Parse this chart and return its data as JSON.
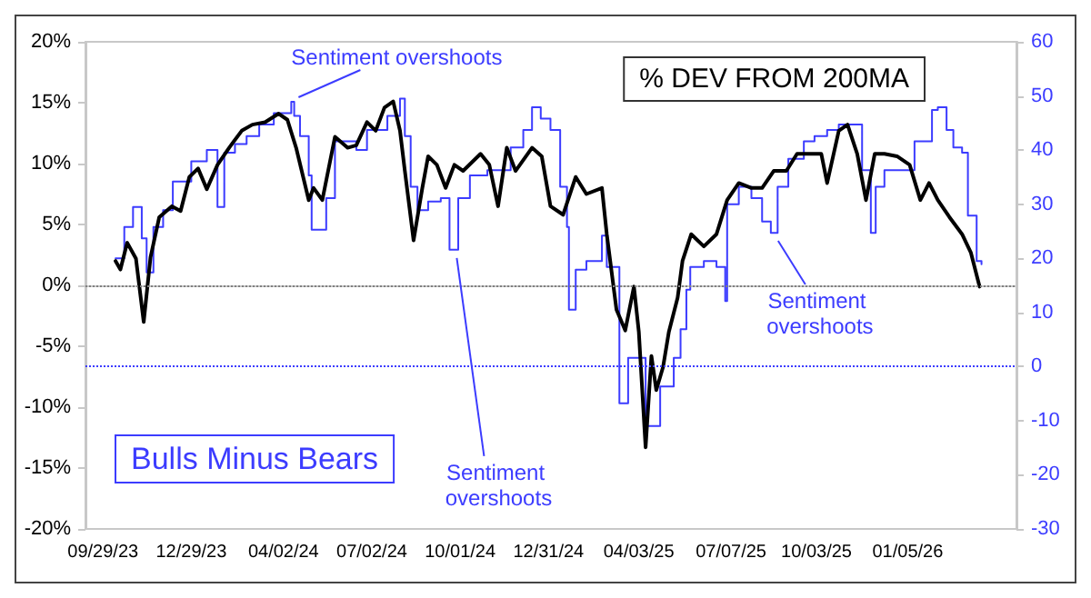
{
  "chart_data": {
    "type": "line",
    "xlim": [
      "2023-09-11",
      "2026-04-27"
    ],
    "xticks": [
      {
        "value": "2023-09-29",
        "label": "09/29/23"
      },
      {
        "value": "2023-12-29",
        "label": "12/29/23"
      },
      {
        "value": "2024-04-02",
        "label": "04/02/24"
      },
      {
        "value": "2024-07-02",
        "label": "07/02/24"
      },
      {
        "value": "2024-10-01",
        "label": "10/01/24"
      },
      {
        "value": "2024-12-31",
        "label": "12/31/24"
      },
      {
        "value": "2025-04-03",
        "label": "04/03/25"
      },
      {
        "value": "2025-07-07",
        "label": "07/07/25"
      },
      {
        "value": "2025-10-03",
        "label": "10/03/25"
      },
      {
        "value": "2026-01-05",
        "label": "01/05/26"
      }
    ],
    "ylim": [
      -20,
      20
    ],
    "yticks": [
      {
        "value": -20,
        "label": "-20%"
      },
      {
        "value": -15,
        "label": "-15%"
      },
      {
        "value": -10,
        "label": "-10%"
      },
      {
        "value": -5,
        "label": "-5%"
      },
      {
        "value": 0,
        "label": "0%"
      },
      {
        "value": 5,
        "label": "5%"
      },
      {
        "value": 10,
        "label": "10%"
      },
      {
        "value": 15,
        "label": "15%"
      },
      {
        "value": 20,
        "label": "20%"
      }
    ],
    "y2lim": [
      -30,
      60
    ],
    "y2ticks": [
      -30,
      -20,
      -10,
      0,
      10,
      20,
      30,
      40,
      50,
      60
    ],
    "series": [
      {
        "name": "% DEV FROM 200MA",
        "color": "#000000",
        "x": [
          "2023-10-12",
          "2023-10-17",
          "2023-10-24",
          "2023-11-02",
          "2023-11-10",
          "2023-11-17",
          "2023-11-26",
          "2023-12-09",
          "2023-12-18",
          "2023-12-27",
          "2024-01-05",
          "2024-01-14",
          "2024-01-25",
          "2024-02-06",
          "2024-02-19",
          "2024-03-01",
          "2024-03-14",
          "2024-03-28",
          "2024-04-06",
          "2024-04-15",
          "2024-04-28",
          "2024-05-03",
          "2024-05-12",
          "2024-05-25",
          "2024-06-07",
          "2024-06-16",
          "2024-06-27",
          "2024-07-06",
          "2024-07-15",
          "2024-07-24",
          "2024-07-31",
          "2024-08-05",
          "2024-08-14",
          "2024-08-23",
          "2024-08-29",
          "2024-09-07",
          "2024-09-16",
          "2024-09-25",
          "2024-10-04",
          "2024-10-22",
          "2024-10-31",
          "2024-11-09",
          "2024-11-18",
          "2024-11-27",
          "2024-12-14",
          "2024-12-24",
          "2025-01-02",
          "2025-01-15",
          "2025-01-28",
          "2025-02-08",
          "2025-02-24",
          "2025-03-01",
          "2025-03-11",
          "2025-03-20",
          "2025-03-29",
          "2025-04-03",
          "2025-04-10",
          "2025-04-16",
          "2025-04-21",
          "2025-04-28",
          "2025-05-04",
          "2025-05-13",
          "2025-05-18",
          "2025-05-27",
          "2025-06-09",
          "2025-06-22",
          "2025-07-03",
          "2025-07-15",
          "2025-07-28",
          "2025-08-08",
          "2025-08-20",
          "2025-09-02",
          "2025-09-13",
          "2025-09-26",
          "2025-10-08",
          "2025-10-14",
          "2025-10-26",
          "2025-11-04",
          "2025-11-14",
          "2025-11-23",
          "2025-12-02",
          "2025-12-12",
          "2025-12-25",
          "2026-01-07",
          "2026-01-18",
          "2026-01-27",
          "2026-02-05",
          "2026-02-17",
          "2026-03-02",
          "2026-03-11",
          "2026-03-20"
        ],
        "values": [
          2.0,
          1.3,
          3.5,
          2.2,
          -3.0,
          2.3,
          5.6,
          6.5,
          6.1,
          8.9,
          9.6,
          7.9,
          9.9,
          11.3,
          12.7,
          13.2,
          13.4,
          14.1,
          13.6,
          11.3,
          7.0,
          8.0,
          7.0,
          12.2,
          11.3,
          11.5,
          13.4,
          12.7,
          14.6,
          15.1,
          12.7,
          9.4,
          3.7,
          8.0,
          10.6,
          9.9,
          8.0,
          9.9,
          9.4,
          10.8,
          9.9,
          6.5,
          11.3,
          9.4,
          11.3,
          10.6,
          6.5,
          5.8,
          8.9,
          7.5,
          8.0,
          4.2,
          -2.0,
          -3.7,
          -0.1,
          -3.8,
          -13.3,
          -5.8,
          -8.6,
          -6.7,
          -3.8,
          -1.0,
          2.0,
          4.2,
          3.2,
          4.2,
          7.0,
          8.4,
          8.0,
          8.0,
          9.4,
          9.4,
          10.8,
          10.8,
          10.8,
          8.4,
          12.7,
          13.2,
          10.8,
          7.0,
          10.8,
          10.8,
          10.6,
          9.9,
          7.0,
          8.4,
          7.0,
          5.6,
          4.2,
          2.7,
          -0.1
        ]
      },
      {
        "name": "Bulls Minus Bears",
        "type": "step",
        "axis": "y2",
        "color": "#3c3cff",
        "x": [
          "2023-10-12",
          "2023-10-21",
          "2023-10-30",
          "2023-11-04",
          "2023-11-08",
          "2023-11-13",
          "2023-11-20",
          "2023-11-30",
          "2023-12-10",
          "2023-12-19",
          "2023-12-29",
          "2024-01-14",
          "2024-01-25",
          "2024-02-01",
          "2024-02-12",
          "2024-02-24",
          "2024-03-08",
          "2024-03-23",
          "2024-04-10",
          "2024-04-13",
          "2024-04-19",
          "2024-04-28",
          "2024-05-01",
          "2024-05-10",
          "2024-05-16",
          "2024-05-25",
          "2024-06-07",
          "2024-06-16",
          "2024-06-27",
          "2024-07-09",
          "2024-07-18",
          "2024-07-31",
          "2024-08-05",
          "2024-08-11",
          "2024-08-18",
          "2024-08-29",
          "2024-09-11",
          "2024-09-20",
          "2024-09-29",
          "2024-10-11",
          "2024-10-29",
          "2024-11-09",
          "2024-11-22",
          "2024-12-05",
          "2024-12-14",
          "2024-12-23",
          "2025-01-02",
          "2025-01-12",
          "2025-01-19",
          "2025-01-21",
          "2025-01-28",
          "2025-02-08",
          "2025-02-24",
          "2025-03-01",
          "2025-03-14",
          "2025-03-23",
          "2025-04-03",
          "2025-04-10",
          "2025-04-19",
          "2025-04-25",
          "2025-05-04",
          "2025-05-09",
          "2025-05-16",
          "2025-05-22",
          "2025-05-26",
          "2025-06-09",
          "2025-06-22",
          "2025-07-01",
          "2025-07-03",
          "2025-07-15",
          "2025-07-28",
          "2025-08-08",
          "2025-08-17",
          "2025-08-24",
          "2025-09-04",
          "2025-09-20",
          "2025-10-01",
          "2025-10-14",
          "2025-10-26",
          "2025-11-10",
          "2025-11-19",
          "2025-11-28",
          "2025-12-03",
          "2025-12-12",
          "2025-12-31",
          "2026-01-12",
          "2026-01-30",
          "2026-02-05",
          "2026-02-14",
          "2026-02-21",
          "2026-03-02",
          "2026-03-08",
          "2026-03-13",
          "2026-03-17",
          "2026-03-22"
        ],
        "values": [
          20.0,
          25.8,
          29.5,
          29.5,
          23.7,
          17.4,
          25.8,
          28.9,
          34.2,
          34.2,
          37.9,
          40.0,
          29.5,
          39.5,
          41.1,
          42.6,
          44.7,
          46.8,
          48.9,
          46.3,
          42.6,
          35.3,
          25.3,
          25.3,
          31.1,
          41.6,
          41.6,
          40.0,
          43.7,
          43.7,
          46.3,
          49.5,
          42.6,
          33.2,
          28.9,
          30.5,
          31.1,
          21.6,
          31.1,
          35.3,
          36.3,
          36.3,
          40.5,
          43.7,
          47.9,
          45.8,
          43.7,
          33.2,
          25.8,
          10.5,
          17.9,
          19.5,
          24.2,
          18.4,
          -6.8,
          1.6,
          1.6,
          -11.0,
          -11.0,
          -3.7,
          -3.7,
          1.6,
          6.9,
          14.2,
          18.4,
          19.5,
          18.4,
          12.1,
          30.0,
          33.2,
          31.1,
          26.8,
          24.7,
          33.2,
          38.4,
          41.6,
          42.6,
          43.7,
          44.7,
          44.7,
          36.3,
          24.7,
          33.2,
          36.3,
          36.3,
          41.6,
          47.4,
          47.9,
          43.7,
          40.5,
          39.5,
          27.9,
          27.9,
          19.5,
          18.9
        ]
      }
    ],
    "ref_lines": [
      {
        "axis": "y",
        "value": 0,
        "color": "#808080",
        "line_style": "dotted"
      },
      {
        "axis": "y2",
        "value": 0,
        "color": "#3c3cff",
        "line_style": "dotted"
      }
    ],
    "annotations": [
      {
        "text": "Sentiment overshoots",
        "x": "2024-04-10",
        "y": 15.0
      },
      {
        "text": "Sentiment overshoots",
        "x": "2024-09-20",
        "y": 2.7
      },
      {
        "text": "Sentiment overshoots",
        "x": "2025-08-17",
        "y": 4.1
      }
    ],
    "grid": false
  }
}
